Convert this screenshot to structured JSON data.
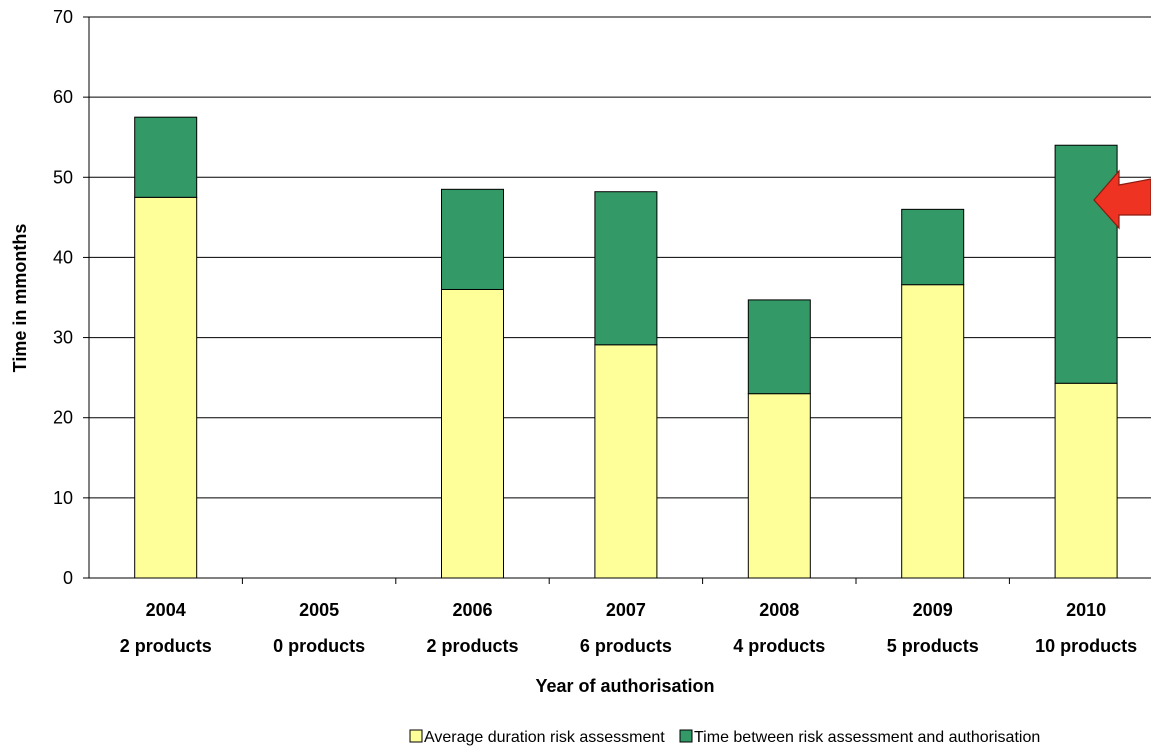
{
  "chart_data": {
    "type": "bar",
    "stacked": true,
    "title": "",
    "xlabel": "Year of authorisation",
    "ylabel": "Time in mmonths",
    "ylim": [
      0,
      70
    ],
    "yticks": [
      0,
      10,
      20,
      30,
      40,
      50,
      60,
      70
    ],
    "grid": true,
    "legend_position": "bottom",
    "categories": [
      {
        "year": "2004",
        "products": "2 products"
      },
      {
        "year": "2005",
        "products": "0 products"
      },
      {
        "year": "2006",
        "products": "2 products"
      },
      {
        "year": "2007",
        "products": "6 products"
      },
      {
        "year": "2008",
        "products": "4 products"
      },
      {
        "year": "2009",
        "products": "5 products"
      },
      {
        "year": "2010",
        "products": "10 products"
      }
    ],
    "series": [
      {
        "name": "Average duration risk assessment",
        "color": "#FFFF99",
        "values": [
          47.5,
          0,
          36,
          29.1,
          23,
          36.6,
          24.3
        ]
      },
      {
        "name": "Time between risk assessment and authorisation",
        "color": "#339966",
        "values": [
          10,
          0,
          12.5,
          19.1,
          11.7,
          9.4,
          29.7
        ]
      }
    ],
    "annotation": {
      "type": "arrow",
      "color": "#EE3322",
      "target": "2010"
    }
  }
}
